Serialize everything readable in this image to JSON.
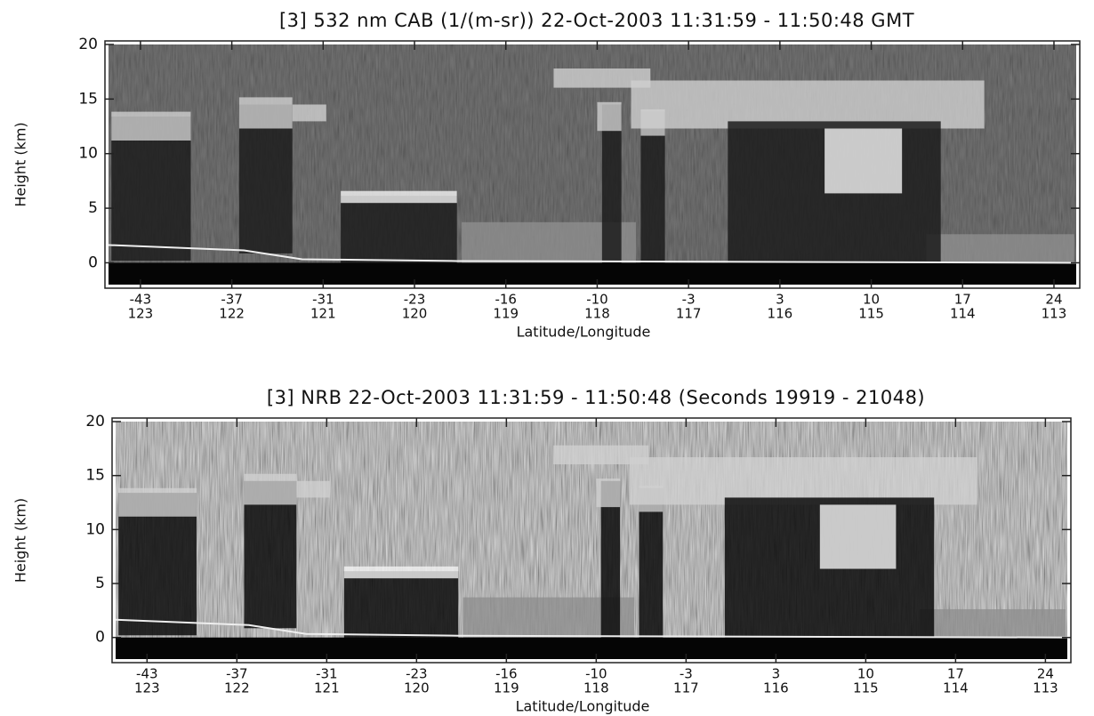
{
  "chart_data": [
    {
      "type": "heatmap",
      "title": "[3]  532 nm CAB (1/(m-sr)) 22-Oct-2003 11:31:59  -  11:50:48 GMT",
      "ylabel": "Height (km)",
      "xlabel": "Latitude/Longitude",
      "ylim": [
        -2,
        20
      ],
      "yticks": [
        0,
        5,
        10,
        15,
        20
      ],
      "categories": [
        "-43",
        "-37",
        "-31",
        "-23",
        "-16",
        "-10",
        "-3",
        "3",
        "10",
        "17",
        "24"
      ],
      "categories2": [
        "123",
        "122",
        "121",
        "120",
        "119",
        "118",
        "117",
        "116",
        "115",
        "114",
        "113"
      ]
    },
    {
      "type": "heatmap",
      "title": "[3]  NRB 22-Oct-2003 11:31:59  -  11:50:48 (Seconds 19919  -  21048)",
      "ylabel": "Height (km)",
      "xlabel": "Latitude/Longitude",
      "ylim": [
        -2,
        20
      ],
      "yticks": [
        0,
        5,
        10,
        15,
        20
      ],
      "categories": [
        "-43",
        "-37",
        "-31",
        "-23",
        "-16",
        "-10",
        "-3",
        "3",
        "10",
        "17",
        "24"
      ],
      "categories2": [
        "123",
        "122",
        "121",
        "120",
        "119",
        "118",
        "117",
        "116",
        "115",
        "114",
        "113"
      ]
    }
  ]
}
